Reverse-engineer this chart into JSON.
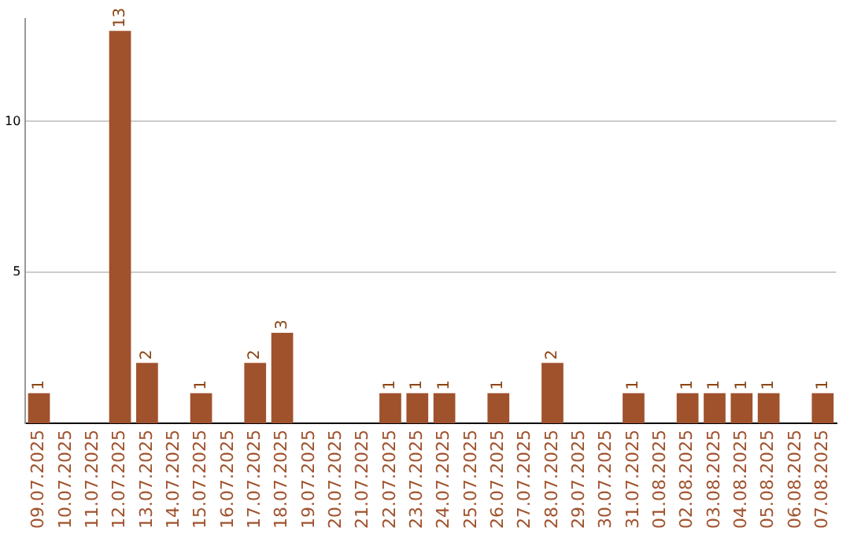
{
  "chart_data": {
    "type": "bar",
    "categories": [
      "09.07.2025",
      "10.07.2025",
      "11.07.2025",
      "12.07.2025",
      "13.07.2025",
      "14.07.2025",
      "15.07.2025",
      "16.07.2025",
      "17.07.2025",
      "18.07.2025",
      "19.07.2025",
      "20.07.2025",
      "21.07.2025",
      "22.07.2025",
      "23.07.2025",
      "24.07.2025",
      "25.07.2025",
      "26.07.2025",
      "27.07.2025",
      "28.07.2025",
      "29.07.2025",
      "30.07.2025",
      "31.07.2025",
      "01.08.2025",
      "02.08.2025",
      "03.08.2025",
      "04.08.2025",
      "05.08.2025",
      "06.08.2025",
      "07.08.2025"
    ],
    "values": [
      1,
      0,
      0,
      13,
      2,
      0,
      1,
      0,
      2,
      3,
      0,
      0,
      0,
      1,
      1,
      1,
      0,
      1,
      0,
      2,
      0,
      0,
      1,
      0,
      1,
      1,
      1,
      1,
      0,
      1
    ],
    "value_labels": [
      "1",
      null,
      null,
      "13",
      "2",
      null,
      "1",
      null,
      "2",
      "3",
      null,
      null,
      null,
      "1",
      "1",
      "1",
      null,
      "1",
      null,
      "2",
      null,
      null,
      "1",
      null,
      "1",
      "1",
      "1",
      "1",
      null,
      "1"
    ],
    "color": "#a0522d",
    "ylim": [
      0,
      13.4
    ],
    "yticks": [
      5,
      10
    ],
    "grid": "y"
  }
}
